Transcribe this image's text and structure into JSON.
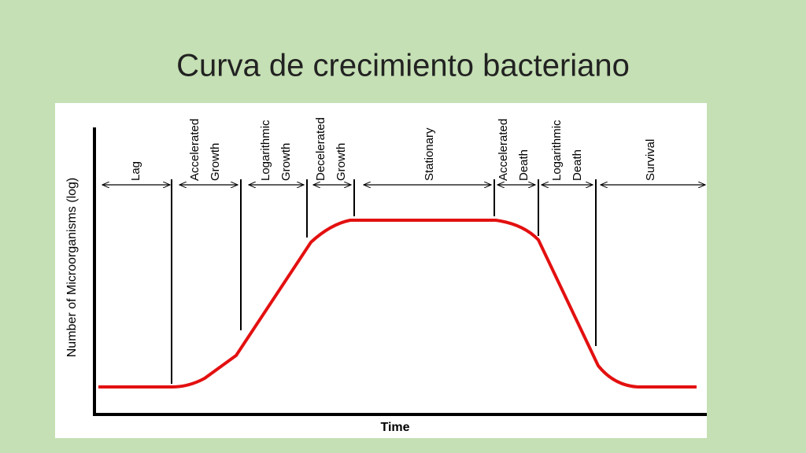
{
  "title": "Curva de crecimiento bacteriano",
  "diagram": {
    "y_axis_label": "Number of Microorganisms (log)",
    "x_axis_label": "Time",
    "phases": [
      {
        "lines": [
          "Lag"
        ]
      },
      {
        "lines": [
          "Accelerated",
          "Growth"
        ]
      },
      {
        "lines": [
          "Logarithmic",
          "Growth"
        ]
      },
      {
        "lines": [
          "Decelerated",
          "Growth"
        ]
      },
      {
        "lines": [
          "Stationary"
        ]
      },
      {
        "lines": [
          "Accelerated",
          "Death"
        ]
      },
      {
        "lines": [
          "Logarithmic",
          "Death"
        ]
      },
      {
        "lines": [
          "Survival"
        ]
      }
    ]
  }
}
